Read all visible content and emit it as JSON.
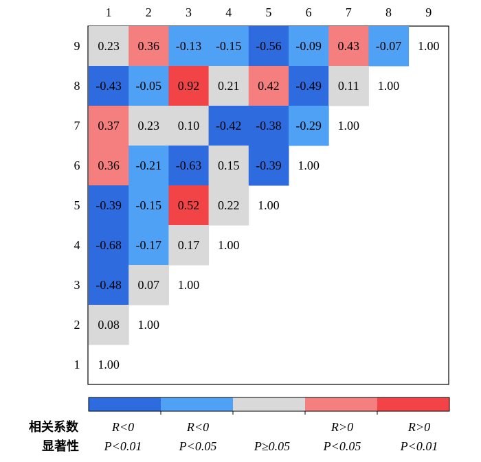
{
  "chart_data": {
    "type": "heatmap",
    "x_ticks": [
      "1",
      "2",
      "3",
      "4",
      "5",
      "6",
      "7",
      "8",
      "9"
    ],
    "y_ticks": [
      "9",
      "8",
      "7",
      "6",
      "5",
      "4",
      "3",
      "2",
      "1"
    ],
    "rows": [
      {
        "y": "9",
        "values": [
          "0.23",
          "0.36",
          "-0.13",
          "-0.15",
          "-0.56",
          "-0.09",
          "0.43",
          "-0.07",
          "1.00"
        ],
        "classes": [
          2,
          3,
          1,
          1,
          0,
          1,
          3,
          1,
          5
        ]
      },
      {
        "y": "8",
        "values": [
          "-0.43",
          "-0.05",
          "0.92",
          "0.21",
          "0.42",
          "-0.49",
          "0.11",
          "1.00"
        ],
        "classes": [
          0,
          1,
          4,
          2,
          3,
          0,
          2,
          5
        ]
      },
      {
        "y": "7",
        "values": [
          "0.37",
          "0.23",
          "0.10",
          "-0.42",
          "-0.38",
          "-0.29",
          "1.00"
        ],
        "classes": [
          3,
          2,
          2,
          0,
          0,
          1,
          5
        ]
      },
      {
        "y": "6",
        "values": [
          "0.36",
          "-0.21",
          "-0.63",
          "0.15",
          "-0.39",
          "1.00"
        ],
        "classes": [
          3,
          1,
          0,
          2,
          0,
          5
        ]
      },
      {
        "y": "5",
        "values": [
          "-0.39",
          "-0.15",
          "0.52",
          "0.22",
          "1.00"
        ],
        "classes": [
          0,
          1,
          4,
          2,
          5
        ]
      },
      {
        "y": "4",
        "values": [
          "-0.68",
          "-0.17",
          "0.17",
          "1.00"
        ],
        "classes": [
          0,
          1,
          2,
          5
        ]
      },
      {
        "y": "3",
        "values": [
          "-0.48",
          "0.07",
          "1.00"
        ],
        "classes": [
          0,
          2,
          5
        ]
      },
      {
        "y": "2",
        "values": [
          "0.08",
          "1.00"
        ],
        "classes": [
          2,
          5
        ]
      },
      {
        "y": "1",
        "values": [
          "1.00"
        ],
        "classes": [
          5
        ]
      }
    ],
    "legend": {
      "row_label_1": "相关系数",
      "row_label_2": "显著性",
      "colors": [
        "#2d6bde",
        "#4fa1f5",
        "#d9d9d9",
        "#f47f7e",
        "#f24446"
      ],
      "items": [
        {
          "r": "R<0",
          "p": "P<0.01"
        },
        {
          "r": "R<0",
          "p": "P<0.05"
        },
        {
          "r": "",
          "p": "P≥0.05"
        },
        {
          "r": "R>0",
          "p": "P<0.05"
        },
        {
          "r": "R>0",
          "p": "P<0.01"
        }
      ]
    }
  }
}
